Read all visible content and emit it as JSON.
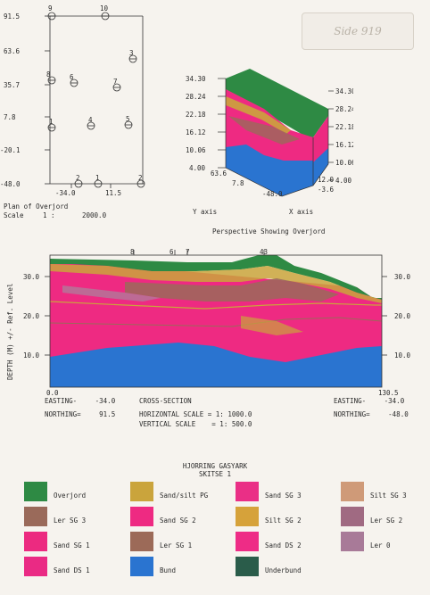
{
  "stamp": "Side 919",
  "plan": {
    "y_ticks": [
      "91.5",
      "63.6",
      "35.7",
      "7.8",
      "-20.1",
      "-48.0"
    ],
    "x_ticks": [
      "-34.0",
      "11.5"
    ],
    "boreholes": [
      {
        "id": "9",
        "x": 0,
        "y": 91.5
      },
      {
        "id": "10",
        "x": 1,
        "y": 91.5
      },
      {
        "id": "8",
        "x": 0,
        "y": 39
      },
      {
        "id": "6",
        "x": 0.3,
        "y": 37
      },
      {
        "id": "7",
        "x": 0.8,
        "y": 33
      },
      {
        "id": "3",
        "x": 1.1,
        "y": 63
      },
      {
        "id": "4",
        "x": 0.5,
        "y": 4
      },
      {
        "id": "5",
        "x": 1.0,
        "y": 5
      },
      {
        "id": "1",
        "x": 0,
        "y": 3
      },
      {
        "id": "2",
        "x": 0.34,
        "y": -48
      },
      {
        "id": "1",
        "x": 0.62,
        "y": -48
      },
      {
        "id": "2",
        "x": 1.25,
        "y": -48
      }
    ],
    "title": "Plan of Overjord",
    "scale_label": "Scale",
    "scale_value": "1 :",
    "scale_number": "2000.0"
  },
  "perspective": {
    "left_ticks": [
      "34.30",
      "28.24",
      "22.18",
      "16.12",
      "10.06",
      "4.00"
    ],
    "right_ticks": [
      "34.30",
      "28.24",
      "22.18",
      "16.12",
      "10.06",
      "4.00"
    ],
    "y_axis_ticks": [
      "63.6",
      "7.8",
      "-48.0"
    ],
    "x_axis_ticks": [
      "-3.6",
      "12.0"
    ],
    "y_axis_label": "Y axis",
    "x_axis_label": "X axis",
    "title": "Perspective Showing Overjord"
  },
  "section": {
    "borehole_labels": [
      "8",
      "6",
      "7",
      "43"
    ],
    "y_ticks": [
      "30.0",
      "20.0",
      "10.0"
    ],
    "y_axis_label": "DEPTH (M) +/- Ref. Level",
    "x_start": "0.0",
    "x_end": "130.5",
    "easting_left_label": "EASTING-",
    "easting_left_value": "-34.0",
    "easting_right_label": "EASTING-",
    "easting_right_value": "-34.0",
    "northing_left_label": "NORTHING=",
    "northing_left_value": "91.5",
    "northing_right_label": "NORTHING=",
    "northing_right_value": "-48.0",
    "cross_section_label": "CROSS-SECTION",
    "horizontal_scale_label": "HORIZONTAL SCALE = 1:",
    "horizontal_scale_value": "1000.0",
    "vertical_scale_label": "VERTICAL SCALE    = 1:",
    "vertical_scale_value": "500.0"
  },
  "legend": {
    "title": "HJORRING GASYARK",
    "subtitle": "SKITSE 1",
    "items": [
      {
        "label": "Overjord",
        "color": "#2e8a44"
      },
      {
        "label": "Sand/silt PG",
        "color": "#caa43c"
      },
      {
        "label": "Sand SG 3",
        "color": "#ea2f86"
      },
      {
        "label": "Silt SG 3",
        "color": "#cf9a78"
      },
      {
        "label": "Ler SG 3",
        "color": "#9a6a5a"
      },
      {
        "label": "Sand SG 2",
        "color": "#ee2a82"
      },
      {
        "label": "Silt SG 2",
        "color": "#d6a23a"
      },
      {
        "label": "Ler SG 2",
        "color": "#a06a82"
      },
      {
        "label": "Sand SG 1",
        "color": "#ec2a80"
      },
      {
        "label": "Ler SG 1",
        "color": "#9c6a58"
      },
      {
        "label": "Sand DS 2",
        "color": "#ee2c86"
      },
      {
        "label": "Ler 0",
        "color": "#a87a98"
      },
      {
        "label": "Sand DS 1",
        "color": "#ea2a84"
      },
      {
        "label": "Bund",
        "color": "#2a74d0"
      },
      {
        "label": "Underbund",
        "color": "#2a5c4a"
      }
    ]
  }
}
